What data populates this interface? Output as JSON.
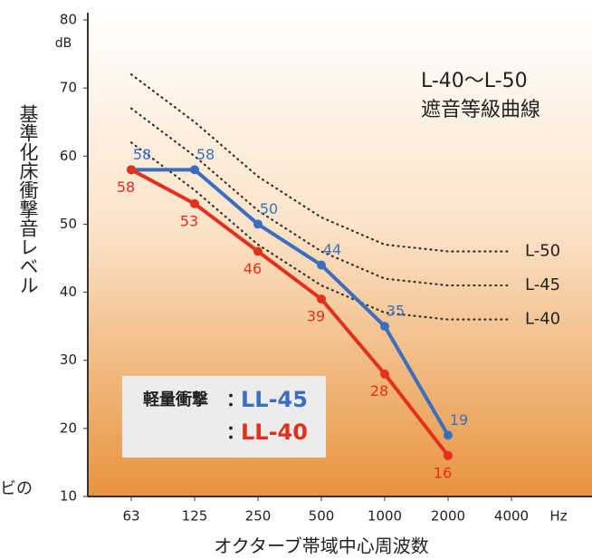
{
  "chart_data": {
    "type": "line",
    "title": "L-40～L-50",
    "subtitle": "遮音等級曲線",
    "y_label": "基準化床衝撃音レベル",
    "y_unit": "dB",
    "x_label": "オクターブ帯域中心周波数",
    "x_unit": "Hz",
    "fragment": "ビの",
    "categories": [
      "63",
      "125",
      "250",
      "500",
      "1000",
      "2000",
      "4000"
    ],
    "ylim": [
      10,
      80
    ],
    "yticks": [
      10,
      20,
      30,
      40,
      50,
      60,
      70,
      80
    ],
    "legend_title": "軽量衝撃",
    "legend_separator": "：",
    "series": [
      {
        "name": "LL-45",
        "color": "#3a6fbf",
        "values": [
          58,
          58,
          50,
          44,
          35,
          19,
          null
        ]
      },
      {
        "name": "LL-40",
        "color": "#e3301c",
        "values": [
          58,
          53,
          46,
          39,
          28,
          16,
          null
        ]
      }
    ],
    "reference_curves": [
      {
        "name": "L-50",
        "values": [
          72,
          65,
          57,
          51,
          47,
          46,
          46
        ]
      },
      {
        "name": "L-45",
        "values": [
          67,
          60,
          52,
          46,
          42,
          41,
          41
        ]
      },
      {
        "name": "L-40",
        "values": [
          62,
          55,
          47,
          41,
          37,
          36,
          36
        ]
      }
    ]
  }
}
